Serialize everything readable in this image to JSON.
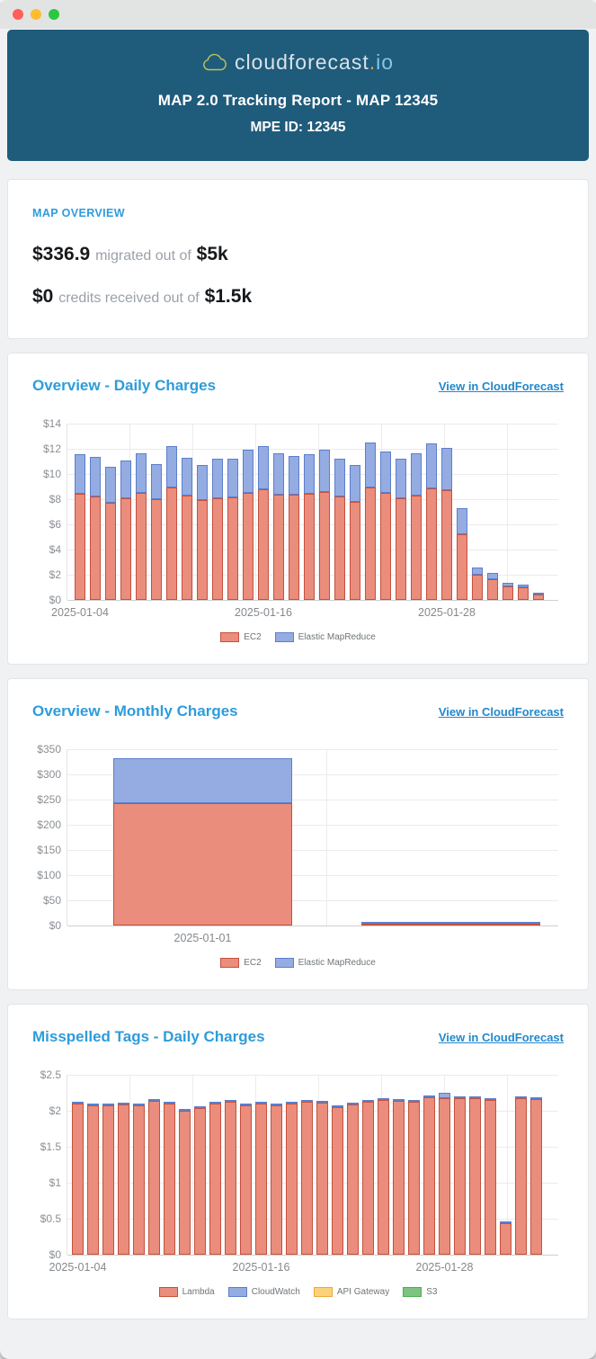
{
  "window": {
    "controls": [
      {
        "name": "close",
        "color": "#FF5F57"
      },
      {
        "name": "minimize",
        "color": "#FEBC2E"
      },
      {
        "name": "zoom",
        "color": "#28C840"
      }
    ]
  },
  "colors": {
    "accent": "#2D9CDB",
    "link": "#2188CC",
    "header_bg": "#1F5B7B",
    "ec2_fill": "#EA8D7C",
    "ec2_border": "#C4513D",
    "emr_fill": "#94ACE2",
    "emr_border": "#5C7FCB"
  },
  "header": {
    "logo_name": "cloudforecast",
    "logo_dot": ".",
    "logo_suffix": "io",
    "title": "MAP 2.0 Tracking Report - MAP 12345",
    "subtitle": "MPE ID: 12345"
  },
  "map_overview": {
    "heading": "MAP OVERVIEW",
    "line1": {
      "value": "$336.9",
      "label": "migrated out of",
      "total": "$5k"
    },
    "line2": {
      "value": "$0",
      "label": "credits received out of",
      "total": "$1.5k"
    }
  },
  "chart_data": [
    {
      "type": "bar",
      "stacked": true,
      "title": "Overview - Daily Charges",
      "link_label": "View in CloudForecast",
      "ylabel_prefix": "$",
      "ylim": [
        0,
        14
      ],
      "ytick_step": 2,
      "legend_position": "bottom",
      "grid": true,
      "x": [
        "2025-01-04",
        "2025-01-05",
        "2025-01-06",
        "2025-01-07",
        "2025-01-08",
        "2025-01-09",
        "2025-01-10",
        "2025-01-11",
        "2025-01-12",
        "2025-01-13",
        "2025-01-14",
        "2025-01-15",
        "2025-01-16",
        "2025-01-17",
        "2025-01-18",
        "2025-01-19",
        "2025-01-20",
        "2025-01-21",
        "2025-01-22",
        "2025-01-23",
        "2025-01-24",
        "2025-01-25",
        "2025-01-26",
        "2025-01-27",
        "2025-01-28",
        "2025-01-29",
        "2025-01-30",
        "2025-01-31",
        "2025-02-01",
        "2025-02-02",
        "2025-02-03"
      ],
      "x_ticks": [
        {
          "index": 0,
          "label": "2025-01-04"
        },
        {
          "index": 12,
          "label": "2025-01-16"
        },
        {
          "index": 24,
          "label": "2025-01-28"
        }
      ],
      "series": [
        {
          "name": "EC2",
          "fill": "#EA8D7C",
          "border": "#C4513D",
          "values": [
            8.4,
            8.25,
            7.7,
            8.05,
            8.5,
            8.0,
            8.9,
            8.3,
            7.9,
            8.1,
            8.15,
            8.5,
            8.8,
            8.35,
            8.35,
            8.45,
            8.6,
            8.2,
            7.8,
            8.9,
            8.5,
            8.05,
            8.3,
            8.85,
            8.7,
            5.2,
            2.0,
            1.65,
            1.1,
            1.0,
            0.45
          ]
        },
        {
          "name": "Elastic MapReduce",
          "fill": "#94ACE2",
          "border": "#5C7FCB",
          "values": [
            3.2,
            3.1,
            2.9,
            3.0,
            3.15,
            2.8,
            3.35,
            3.0,
            2.85,
            3.1,
            3.05,
            3.4,
            3.4,
            3.3,
            3.1,
            3.1,
            3.35,
            3.05,
            2.95,
            3.6,
            3.3,
            3.15,
            3.35,
            3.6,
            3.4,
            2.1,
            0.6,
            0.5,
            0.25,
            0.2,
            0.1
          ]
        }
      ]
    },
    {
      "type": "bar",
      "stacked": true,
      "title": "Overview - Monthly Charges",
      "link_label": "View in CloudForecast",
      "ylabel_prefix": "$",
      "ylim": [
        0,
        350
      ],
      "ytick_step": 50,
      "legend_position": "bottom",
      "grid": true,
      "x": [
        "2025-01-01",
        "2025-02-01"
      ],
      "x_ticks": [
        {
          "index": 0,
          "label": "2025-01-01"
        }
      ],
      "series": [
        {
          "name": "EC2",
          "fill": "#EA8D7C",
          "border": "#C4513D",
          "values": [
            243,
            3
          ]
        },
        {
          "name": "Elastic MapReduce",
          "fill": "#94ACE2",
          "border": "#5C7FCB",
          "values": [
            90,
            0.5
          ]
        }
      ]
    },
    {
      "type": "bar",
      "stacked": true,
      "title": "Misspelled Tags - Daily Charges",
      "link_label": "View in CloudForecast",
      "ylabel_prefix": "$",
      "ylim": [
        0,
        2.5
      ],
      "ytick_step": 0.5,
      "legend_position": "bottom",
      "grid": true,
      "x": [
        "2025-01-04",
        "2025-01-05",
        "2025-01-06",
        "2025-01-07",
        "2025-01-08",
        "2025-01-09",
        "2025-01-10",
        "2025-01-11",
        "2025-01-12",
        "2025-01-13",
        "2025-01-14",
        "2025-01-15",
        "2025-01-16",
        "2025-01-17",
        "2025-01-18",
        "2025-01-19",
        "2025-01-20",
        "2025-01-21",
        "2025-01-22",
        "2025-01-23",
        "2025-01-24",
        "2025-01-25",
        "2025-01-26",
        "2025-01-27",
        "2025-01-28",
        "2025-01-29",
        "2025-01-30",
        "2025-01-31",
        "2025-02-01",
        "2025-02-02",
        "2025-02-03"
      ],
      "x_ticks": [
        {
          "index": 0,
          "label": "2025-01-04"
        },
        {
          "index": 12,
          "label": "2025-01-16"
        },
        {
          "index": 24,
          "label": "2025-01-28"
        }
      ],
      "series": [
        {
          "name": "Lambda",
          "fill": "#EA8D7C",
          "border": "#C4513D",
          "values": [
            2.1,
            2.07,
            2.08,
            2.09,
            2.07,
            2.14,
            2.1,
            2.0,
            2.04,
            2.1,
            2.13,
            2.07,
            2.1,
            2.08,
            2.1,
            2.12,
            2.11,
            2.05,
            2.09,
            2.12,
            2.15,
            2.14,
            2.12,
            2.19,
            2.18,
            2.18,
            2.17,
            2.15,
            0.44,
            2.18,
            2.16
          ]
        },
        {
          "name": "CloudWatch",
          "fill": "#94ACE2",
          "border": "#5C7FCB",
          "values": [
            0.02,
            0.02,
            0.02,
            0.02,
            0.02,
            0.02,
            0.02,
            0.02,
            0.02,
            0.02,
            0.02,
            0.02,
            0.02,
            0.02,
            0.02,
            0.02,
            0.02,
            0.02,
            0.02,
            0.02,
            0.02,
            0.02,
            0.02,
            0.02,
            0.07,
            0.02,
            0.02,
            0.02,
            0.01,
            0.02,
            0.02
          ]
        },
        {
          "name": "API Gateway",
          "fill": "#FBD277",
          "border": "#EDA838",
          "values": [
            0,
            0,
            0,
            0,
            0,
            0,
            0,
            0,
            0,
            0,
            0,
            0,
            0,
            0,
            0,
            0,
            0,
            0,
            0,
            0,
            0,
            0,
            0,
            0,
            0,
            0,
            0,
            0,
            0,
            0,
            0
          ]
        },
        {
          "name": "S3",
          "fill": "#7CC47F",
          "border": "#4CAE4F",
          "values": [
            0,
            0,
            0,
            0,
            0,
            0,
            0,
            0,
            0,
            0,
            0,
            0,
            0,
            0,
            0,
            0,
            0,
            0,
            0,
            0,
            0,
            0,
            0,
            0,
            0,
            0,
            0,
            0,
            0,
            0,
            0
          ]
        }
      ]
    }
  ]
}
